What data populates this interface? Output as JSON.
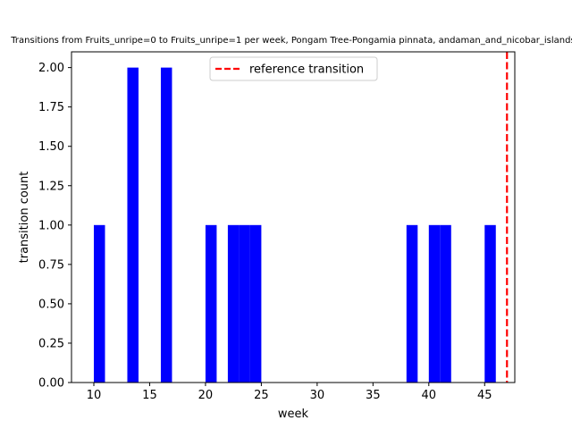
{
  "chart_data": {
    "type": "bar",
    "title": "Transitions from Fruits_unripe=0 to Fruits_unripe=1 per week, Pongam Tree-Pongamia pinnata, andaman_and_nicobar_islands",
    "xlabel": "week",
    "ylabel": "transition count",
    "xlim": [
      8,
      47.7
    ],
    "ylim": [
      0,
      2.1
    ],
    "xticks": [
      10,
      15,
      20,
      25,
      30,
      35,
      40,
      45
    ],
    "xtick_labels": [
      "10",
      "15",
      "20",
      "25",
      "30",
      "35",
      "40",
      "45"
    ],
    "yticks": [
      0,
      0.25,
      0.5,
      0.75,
      1.0,
      1.25,
      1.5,
      1.75,
      2.0
    ],
    "ytick_labels": [
      "0.00",
      "0.25",
      "0.50",
      "0.75",
      "1.00",
      "1.25",
      "1.50",
      "1.75",
      "2.00"
    ],
    "bar_width": 1,
    "series": [
      {
        "color": "#0000ff",
        "x": [
          10,
          13,
          16,
          20,
          22,
          23,
          24,
          38,
          40,
          41,
          45
        ],
        "values": [
          1,
          2,
          2,
          1,
          1,
          1,
          1,
          1,
          1,
          1,
          1
        ]
      }
    ],
    "reference_line": {
      "x": 47,
      "label": "reference transition",
      "color": "#ff0000",
      "style": "dashed"
    },
    "legend": {
      "position": "top-center"
    },
    "grid": false
  }
}
